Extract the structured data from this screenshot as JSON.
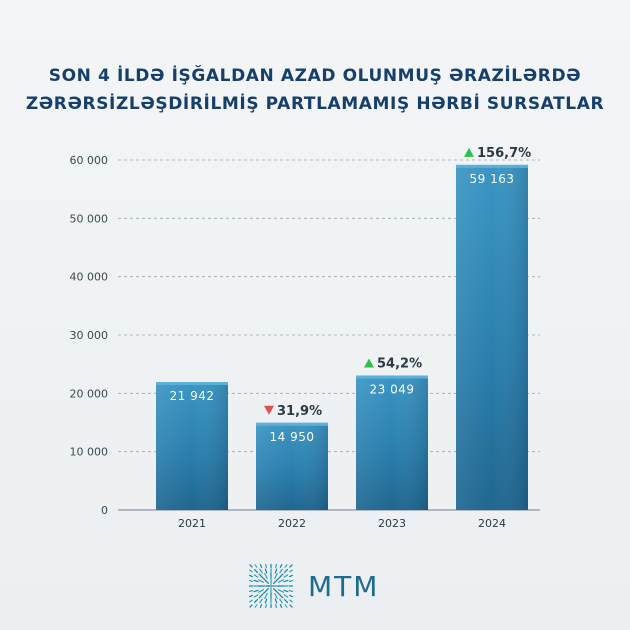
{
  "title": {
    "line1": "SON 4 İLDƏ İŞĞALDAN AZAD OLUNMUŞ ƏRAZİLƏRDƏ",
    "line2": "ZƏRƏRSİZLƏŞDİRİLMİŞ PARTLAMAMIŞ HƏRBİ SURSATLAR"
  },
  "chart_data": {
    "type": "bar",
    "categories": [
      "2021",
      "2022",
      "2023",
      "2024"
    ],
    "values": [
      21942,
      14950,
      23049,
      59163
    ],
    "value_labels": [
      "21 942",
      "14 950",
      "23 049",
      "59 163"
    ],
    "changes": [
      null,
      {
        "direction": "down",
        "label": "31,9%"
      },
      {
        "direction": "up",
        "label": "54,2%"
      },
      {
        "direction": "up",
        "label": "156,7%"
      }
    ],
    "ylim": [
      0,
      60000
    ],
    "yticks": [
      0,
      10000,
      20000,
      30000,
      40000,
      50000,
      60000
    ],
    "ytick_labels": [
      "0",
      "10 000",
      "20 000",
      "30 000",
      "40 000",
      "50 000",
      "60 000"
    ],
    "grid": true,
    "colors": {
      "bar": "#2a7fae",
      "up": "#2fc04a",
      "down": "#e0514b"
    }
  },
  "logo": {
    "text": "MTM",
    "icon": "mtm-logo-icon"
  }
}
